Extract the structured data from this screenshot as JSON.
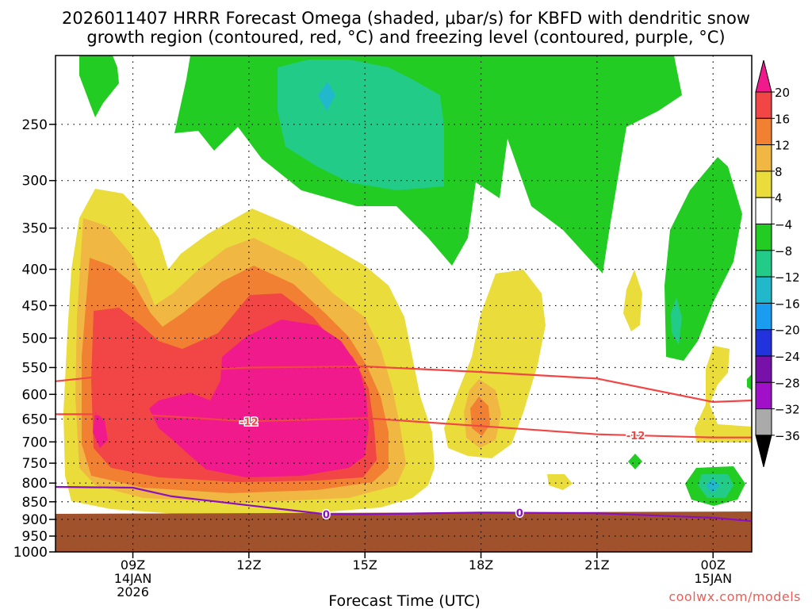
{
  "chart_data": {
    "type": "heatmap",
    "title_line1": "2026011407 HRRR Forecast Omega (shaded, μbar/s) for KBFD with dendritic snow",
    "title_line2": "growth region (contoured, red, °C) and freezing level (contoured, purple, °C)",
    "xlabel": "Forecast Time (UTC)",
    "ylabel": "",
    "x_range_hours": [
      7,
      25
    ],
    "y_range_hpa": [
      200,
      1000
    ],
    "x_ticks": [
      {
        "hour": 9,
        "lines": [
          "09Z",
          "14JAN",
          "2026"
        ]
      },
      {
        "hour": 12,
        "lines": [
          "12Z"
        ]
      },
      {
        "hour": 15,
        "lines": [
          "15Z"
        ]
      },
      {
        "hour": 18,
        "lines": [
          "18Z"
        ]
      },
      {
        "hour": 21,
        "lines": [
          "21Z"
        ]
      },
      {
        "hour": 24,
        "lines": [
          "00Z",
          "15JAN"
        ]
      }
    ],
    "y_ticks": [
      250,
      300,
      350,
      400,
      450,
      500,
      550,
      600,
      650,
      700,
      750,
      800,
      850,
      900,
      950,
      1000
    ],
    "grid": true,
    "ground_level_hpa": 920,
    "colorbar": {
      "labels": [
        "20",
        "16",
        "12",
        "8",
        "4",
        "−4",
        "−8",
        "−12",
        "−16",
        "−20",
        "−24",
        "−28",
        "−32",
        "−36"
      ],
      "colors": [
        "#f01a8c",
        "#f24545",
        "#f28033",
        "#f0b842",
        "#eadc3a",
        "#ffffff",
        "#22cc22",
        "#22cc88",
        "#22b8cc",
        "#1a9cf0",
        "#2233dd",
        "#7711aa",
        "#a010c8",
        "#aaaaaa",
        "#000000"
      ],
      "top_arrow_color": "#f01a8c",
      "bottom_arrow_color": "#000000"
    },
    "series": [
      {
        "name": "dendritic -12C upper",
        "value_label": "",
        "color": "#f24545",
        "points": [
          [
            7,
            575
          ],
          [
            9,
            560
          ],
          [
            12,
            550
          ],
          [
            15,
            548
          ],
          [
            18,
            558
          ],
          [
            21,
            570
          ],
          [
            24,
            615
          ],
          [
            25,
            612
          ]
        ]
      },
      {
        "name": "dendritic -12C lower",
        "value_label": "-12",
        "color": "#f24545",
        "points": [
          [
            7,
            640
          ],
          [
            9,
            640
          ],
          [
            12,
            655
          ],
          [
            15,
            648
          ],
          [
            18,
            665
          ],
          [
            21,
            683
          ],
          [
            24,
            690
          ],
          [
            25,
            690
          ]
        ]
      },
      {
        "name": "freezing level 0C",
        "value_label": "0",
        "color": "#8a10c0",
        "points": [
          [
            7,
            810
          ],
          [
            9,
            812
          ],
          [
            10,
            835
          ],
          [
            12,
            860
          ],
          [
            14,
            885
          ],
          [
            15,
            885
          ],
          [
            18,
            880
          ],
          [
            21,
            882
          ],
          [
            24,
            895
          ],
          [
            25,
            905
          ]
        ]
      }
    ],
    "label_positions_hours": {
      "dendritic -12C lower": [
        12,
        22
      ],
      "freezing level 0C": [
        14,
        19
      ]
    },
    "color_map": {
      "green": "#22cc22",
      "teal": "#22cc88",
      "yellow": "#eadc3a",
      "gold": "#f0b842",
      "orange": "#f28033",
      "red": "#f24545",
      "magenta": "#f01a8c",
      "cyan": "#22b8cc",
      "ground": "#a0522d"
    }
  },
  "credit": "coolwx.com/models"
}
